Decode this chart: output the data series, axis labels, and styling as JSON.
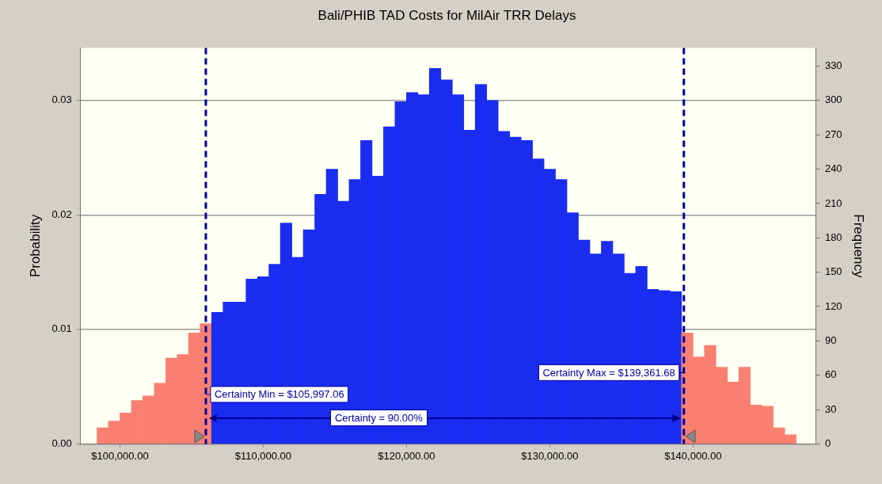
{
  "chart_data": {
    "type": "histogram",
    "title": "Bali/PHIB TAD Costs for MilAir TRR Delays",
    "ylabel": "Probability",
    "y2label": "Frequency",
    "bins": [
      98400,
      99200,
      100000,
      100800,
      101600,
      102400,
      103200,
      104000,
      104800,
      105600,
      106400,
      107200,
      108000,
      108800,
      109600,
      110400,
      111200,
      112000,
      112800,
      113600,
      114400,
      115200,
      116000,
      116800,
      117600,
      118400,
      119200,
      120000,
      120800,
      121600,
      122400,
      123200,
      124000,
      124800,
      125600,
      126400,
      127200,
      128000,
      128800,
      129600,
      130400,
      131200,
      132000,
      132800,
      133600,
      134400,
      135200,
      136000,
      136800,
      137600,
      138400,
      139200,
      140000,
      140800,
      141600,
      142400,
      143200,
      144000,
      144800,
      145600,
      146400,
      147200
    ],
    "series": [
      {
        "axis": "y2",
        "values": [
          14,
          20,
          27,
          38,
          42,
          53,
          75,
          78,
          97,
          105,
          115,
          124,
          124,
          144,
          146,
          157,
          193,
          163,
          187,
          218,
          240,
          212,
          231,
          265,
          234,
          277,
          299,
          307,
          305,
          328,
          318,
          305,
          274,
          314,
          300,
          273,
          268,
          265,
          249,
          240,
          231,
          202,
          178,
          166,
          177,
          166,
          149,
          155,
          135,
          134,
          133,
          97,
          76,
          86,
          67,
          54,
          67,
          34,
          33,
          14,
          8
        ],
        "colors": [
          "#f98070",
          "#f98070",
          "#f98070",
          "#f98070",
          "#f98070",
          "#f98070",
          "#f98070",
          "#f98070",
          "#f98070",
          "#f98070",
          "#1a2cf0",
          "#1a2cf0",
          "#1a2cf0",
          "#1a2cf0",
          "#1a2cf0",
          "#1a2cf0",
          "#1a2cf0",
          "#1a2cf0",
          "#1a2cf0",
          "#1a2cf0",
          "#1a2cf0",
          "#1a2cf0",
          "#1a2cf0",
          "#1a2cf0",
          "#1a2cf0",
          "#1a2cf0",
          "#1a2cf0",
          "#1a2cf0",
          "#1a2cf0",
          "#1a2cf0",
          "#1a2cf0",
          "#1a2cf0",
          "#1a2cf0",
          "#1a2cf0",
          "#1a2cf0",
          "#1a2cf0",
          "#1a2cf0",
          "#1a2cf0",
          "#1a2cf0",
          "#1a2cf0",
          "#1a2cf0",
          "#1a2cf0",
          "#1a2cf0",
          "#1a2cf0",
          "#1a2cf0",
          "#1a2cf0",
          "#1a2cf0",
          "#1a2cf0",
          "#1a2cf0",
          "#1a2cf0",
          "#1a2cf0",
          "#f98070",
          "#f98070",
          "#f98070",
          "#f98070",
          "#f98070",
          "#f98070",
          "#f98070",
          "#f98070",
          "#f98070",
          "#f98070"
        ]
      }
    ],
    "xlim": [
      97250,
      148600
    ],
    "xticks": [
      {
        "value": 100000,
        "label": "$100,000.00"
      },
      {
        "value": 110000,
        "label": "$110,000.00"
      },
      {
        "value": 120000,
        "label": "$120,000.00"
      },
      {
        "value": 130000,
        "label": "$130,000.00"
      },
      {
        "value": 140000,
        "label": "$140,000.00"
      }
    ],
    "ylim": [
      0,
      0.0346
    ],
    "yticks": [
      {
        "value": 0,
        "label": "0.00"
      },
      {
        "value": 0.01,
        "label": "0.01"
      },
      {
        "value": 0.02,
        "label": "0.02"
      },
      {
        "value": 0.03,
        "label": "0.03"
      }
    ],
    "y2lim": [
      0,
      346
    ],
    "y2ticks": [
      0,
      30,
      60,
      90,
      120,
      150,
      180,
      210,
      240,
      270,
      300,
      330
    ],
    "grid": "y",
    "legend": false,
    "ref_lines": [
      {
        "axis": "x",
        "value": 105997.06,
        "label": "Certainty Min = $105,997.06",
        "color": "#0000a0",
        "line_style": "dashed"
      },
      {
        "axis": "x",
        "value": 139361.68,
        "label": "Certainty Max = $139,361.68",
        "color": "#0000a0",
        "line_style": "dashed"
      }
    ],
    "annotations": [
      "Certainty = 90.00%"
    ]
  }
}
